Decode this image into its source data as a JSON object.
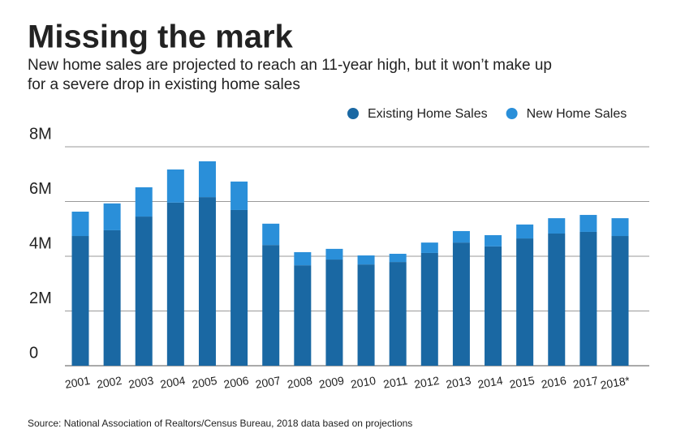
{
  "chart_data": {
    "type": "bar",
    "stacked": true,
    "title": "Missing the mark",
    "subtitle": [
      "New home sales are projected to reach an 11-year high, but it won’t make up",
      "for a severe drop in existing home sales"
    ],
    "source": "Source: National Association of Realtors/Census Bureau, 2018 data based on projections",
    "categories": [
      "2001",
      "2002",
      "2003",
      "2004",
      "2005",
      "2006",
      "2007",
      "2008",
      "2009",
      "2010",
      "2011",
      "2012",
      "2013",
      "2014",
      "2015",
      "2016",
      "2017",
      "2018*"
    ],
    "series": [
      {
        "name": "Existing Home Sales",
        "color": "#1a68a3",
        "values": [
          4.74,
          4.95,
          5.45,
          5.96,
          6.16,
          5.69,
          4.41,
          3.67,
          3.88,
          3.7,
          3.79,
          4.12,
          4.5,
          4.36,
          4.65,
          4.83,
          4.89,
          4.74
        ]
      },
      {
        "name": "New Home Sales",
        "color": "#2a8fd9",
        "values": [
          0.89,
          0.98,
          1.07,
          1.21,
          1.31,
          1.04,
          0.78,
          0.48,
          0.39,
          0.33,
          0.3,
          0.38,
          0.42,
          0.41,
          0.51,
          0.56,
          0.62,
          0.65
        ]
      }
    ],
    "ylim": [
      0,
      8
    ],
    "yticks": [
      0,
      {
        "value": 2,
        "label": "2M"
      },
      {
        "value": 4,
        "label": "4M"
      },
      {
        "value": 6,
        "label": "6M"
      },
      {
        "value": 8,
        "label": "8M"
      }
    ],
    "grid": true,
    "legend": "top-right"
  }
}
